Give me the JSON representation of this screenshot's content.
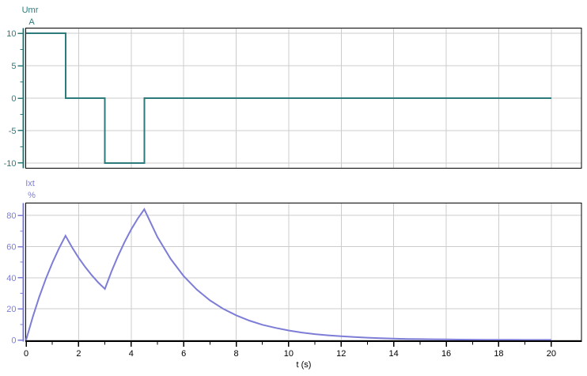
{
  "figure": {
    "background": "#ffffff",
    "frame_color": "#000000",
    "grid_color": "#cccccc",
    "axis_color": "#000000",
    "xlabel": "t (s)",
    "xlim": [
      0,
      21.15
    ],
    "xticks_major": [
      0,
      2,
      4,
      6,
      8,
      10,
      12,
      14,
      16,
      18,
      20
    ],
    "xticks_minor": [
      1,
      3,
      5,
      7,
      9,
      11,
      13,
      15,
      17,
      19
    ]
  },
  "chart_data": [
    {
      "type": "line",
      "title": "Umr",
      "ylabel": "A",
      "color": "#2e7b7c",
      "grid": true,
      "legend_position": "none",
      "xlim": [
        0,
        21.15
      ],
      "ylim": [
        -10.8,
        10.8
      ],
      "yticks": [
        10,
        5,
        0,
        -5,
        -10
      ],
      "yticks_minor": [
        7.5,
        2.5,
        -2.5,
        -7.5
      ],
      "x": [
        0,
        1.5,
        1.5,
        3,
        3,
        4.5,
        4.5,
        20
      ],
      "y": [
        10,
        10,
        0,
        0,
        -10,
        -10,
        0,
        0
      ]
    },
    {
      "type": "line",
      "title": "Ixt",
      "ylabel": "%",
      "color": "#7d7dd8",
      "grid": true,
      "legend_position": "none",
      "xlim": [
        0,
        21.15
      ],
      "ylim": [
        -1,
        88
      ],
      "yticks": [
        80,
        60,
        40,
        20,
        0
      ],
      "yticks_minor": [
        70,
        50,
        30,
        10
      ],
      "x": [
        0,
        0.25,
        0.5,
        0.75,
        1,
        1.25,
        1.5,
        1.75,
        2,
        2.25,
        2.5,
        2.75,
        3,
        3.25,
        3.5,
        3.75,
        4,
        4.25,
        4.5,
        5,
        5.5,
        6,
        6.5,
        7,
        7.5,
        8,
        8.5,
        9,
        9.5,
        10,
        10.5,
        11,
        11.5,
        12,
        12.5,
        13,
        13.5,
        14,
        14.5,
        15,
        15.5,
        16,
        16.5,
        17,
        17.5,
        18,
        18.5,
        19,
        19.5,
        20
      ],
      "y": [
        0,
        14.6,
        27.7,
        39.3,
        49.6,
        58.8,
        67,
        59.5,
        52.8,
        46.9,
        41.6,
        36.9,
        32.8,
        44,
        54,
        63,
        71,
        78,
        84,
        66.2,
        52.2,
        41.1,
        32.4,
        25.5,
        20.1,
        15.9,
        12.5,
        9.8,
        7.8,
        6.1,
        4.8,
        3.8,
        3.0,
        2.4,
        1.9,
        1.5,
        1.2,
        0.9,
        0.7,
        0.6,
        0.45,
        0.36,
        0.28,
        0.22,
        0.17,
        0.14,
        0.11,
        0.08,
        0.07,
        0.05
      ]
    }
  ]
}
